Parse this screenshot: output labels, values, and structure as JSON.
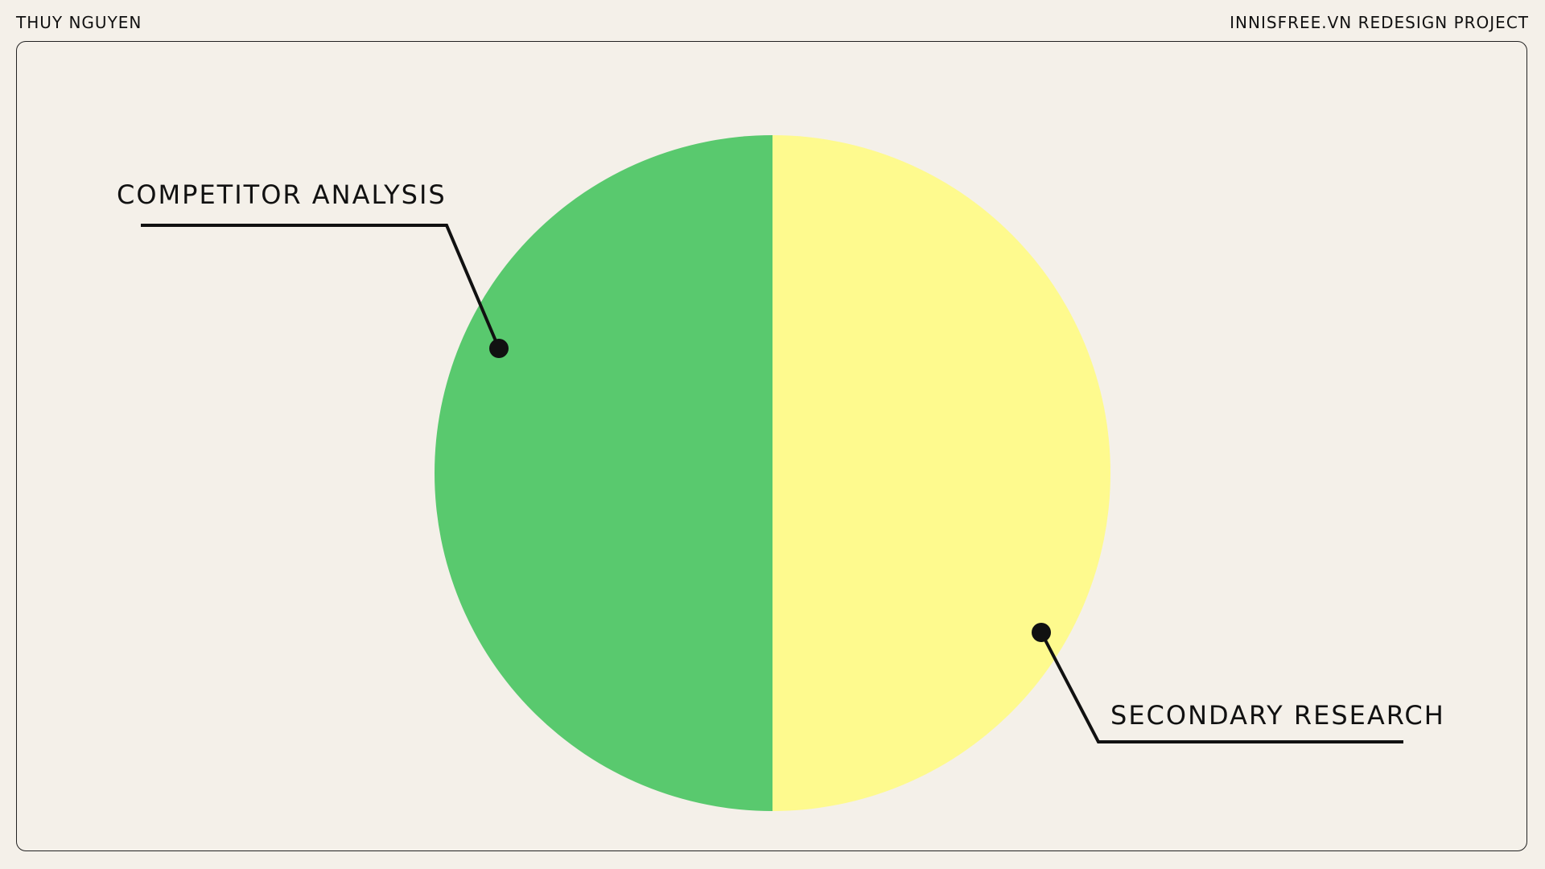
{
  "header": {
    "author": "THUY NGUYEN",
    "project": "INNISFREE.VN REDESIGN PROJECT"
  },
  "chart_data": {
    "type": "pie",
    "categories": [
      "COMPETITOR ANALYSIS",
      "SECONDARY RESEARCH"
    ],
    "values": [
      50,
      50
    ],
    "colors": [
      "#59c96e",
      "#fefa8e"
    ],
    "legend": "callout labels"
  }
}
